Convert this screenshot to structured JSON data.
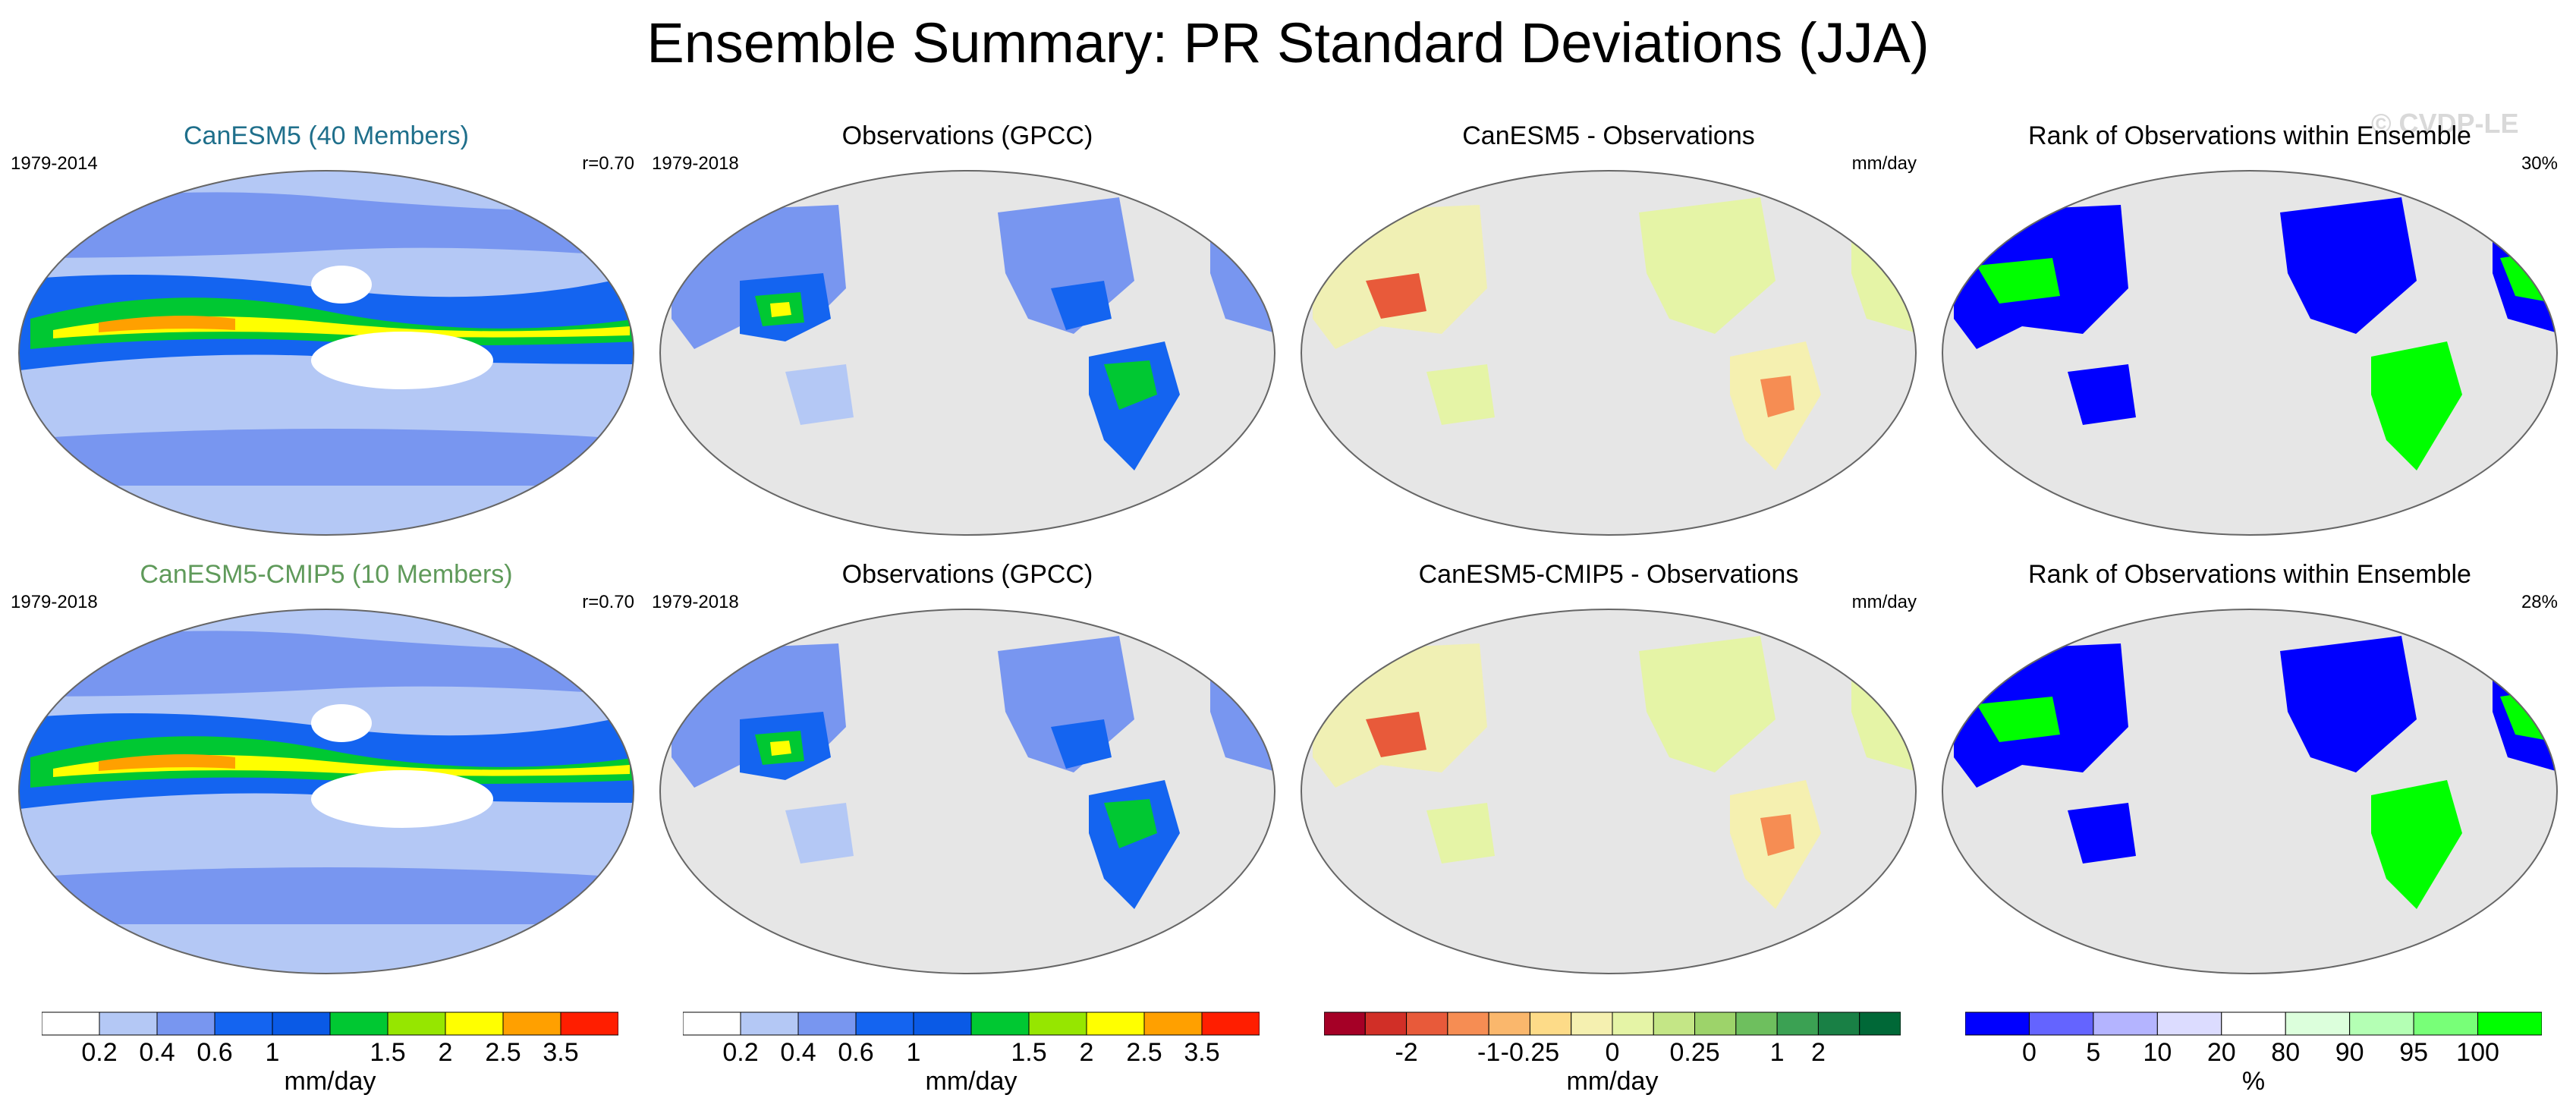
{
  "title": "Ensemble Summary: PR Standard Deviations (JJA)",
  "watermark": "© CVDP-LE",
  "rows": [
    {
      "model": {
        "title": "CanESM5 (40 Members)",
        "period": "1979-2014",
        "stat": "r=0.70"
      },
      "obs": {
        "title": "Observations (GPCC)",
        "period": "1979-2018"
      },
      "diff": {
        "title": "CanESM5 - Observations",
        "unit": "mm/day"
      },
      "rank": {
        "title": "Rank of Observations within Ensemble",
        "stat": "30%"
      }
    },
    {
      "model": {
        "title": "CanESM5-CMIP5 (10 Members)",
        "period": "1979-2018",
        "stat": "r=0.70"
      },
      "obs": {
        "title": "Observations (GPCC)",
        "period": "1979-2018"
      },
      "diff": {
        "title": "CanESM5-CMIP5 - Observations",
        "unit": "mm/day"
      },
      "rank": {
        "title": "Rank of Observations within Ensemble",
        "stat": "28%"
      }
    }
  ],
  "colorbars": [
    {
      "name": "model-colorbar",
      "colors": [
        "#ffffff",
        "#b4c8f5",
        "#7896f0",
        "#1464f0",
        "#0a5ae6",
        "#00c832",
        "#96e600",
        "#ffff00",
        "#ffa000",
        "#ff1e00"
      ],
      "ticks": [
        "0.2",
        "0.4",
        "0.6",
        "1",
        "1.5",
        "2",
        "2.5",
        "3.5"
      ],
      "unit": "mm/day"
    },
    {
      "name": "obs-colorbar",
      "colors": [
        "#ffffff",
        "#b4c8f5",
        "#7896f0",
        "#1464f0",
        "#0a5ae6",
        "#00c832",
        "#96e600",
        "#ffff00",
        "#ffa000",
        "#ff1e00"
      ],
      "ticks": [
        "0.2",
        "0.4",
        "0.6",
        "1",
        "1.5",
        "2",
        "2.5",
        "3.5"
      ],
      "unit": "mm/day"
    },
    {
      "name": "diff-colorbar",
      "colors": [
        "#a50026",
        "#d12f27",
        "#e85a3a",
        "#f68d53",
        "#fab76c",
        "#fddb88",
        "#f5f0b0",
        "#e5f4a6",
        "#c4e686",
        "#9dd36a",
        "#6ebf5e",
        "#3ba153",
        "#198045",
        "#006837"
      ],
      "ticks": [
        "-2",
        "-1",
        "-0.25",
        "0",
        "0.25",
        "1",
        "2"
      ],
      "unit": "mm/day"
    },
    {
      "name": "rank-colorbar",
      "colors": [
        "#0000ff",
        "#6464ff",
        "#b4b4ff",
        "#dcdcff",
        "#ffffff",
        "#dcffdc",
        "#b4ffb4",
        "#78ff78",
        "#00ff00"
      ],
      "ticks": [
        "0",
        "5",
        "10",
        "20",
        "80",
        "90",
        "95",
        "100"
      ],
      "unit": "%"
    }
  ],
  "map_colors": {
    "ocean_gray": "#e6e6e6",
    "precip_light": "#b4c8f5",
    "precip_mid": "#7896f0",
    "precip_blue": "#1464f0",
    "precip_green": "#00c832",
    "precip_yellow": "#ffff00",
    "precip_orange": "#ffa000",
    "precip_red": "#ff1e00",
    "diff_neutral": "#f0f0b4",
    "diff_red": "#e85a3a",
    "diff_green": "#6ebf5e",
    "rank_blue": "#0000ff",
    "rank_green": "#00ff00"
  }
}
